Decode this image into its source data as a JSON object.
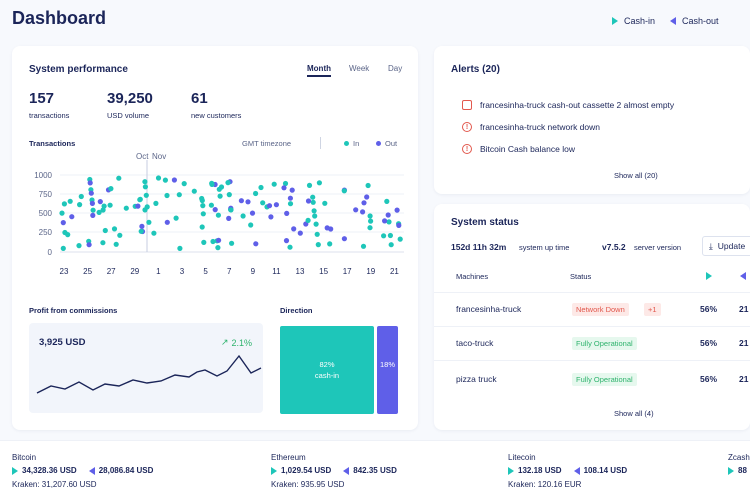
{
  "header": {
    "title": "Dashboard",
    "cash_in": "Cash-in",
    "cash_out": "Cash-out"
  },
  "performance": {
    "title": "System performance",
    "tabs": [
      "Month",
      "Week",
      "Day"
    ],
    "active_tab": "Month",
    "kpis": [
      {
        "value": "157",
        "label": "transactions"
      },
      {
        "value": "39,250",
        "label": "USD volume"
      },
      {
        "value": "61",
        "label": "new customers"
      }
    ],
    "transactions_label": "Transactions",
    "timezone": "GMT timezone",
    "legend_in": "In",
    "legend_out": "Out",
    "month_labels": [
      "Oct",
      "Nov"
    ],
    "y_ticks": [
      "1000",
      "750",
      "500",
      "250",
      "0"
    ],
    "x_ticks": [
      "23",
      "25",
      "27",
      "29",
      "1",
      "3",
      "5",
      "7",
      "9",
      "11",
      "13",
      "15",
      "17",
      "19",
      "21"
    ],
    "profit": {
      "title": "Profit from commissions",
      "value": "3,925 USD",
      "change": "2.1%"
    },
    "direction": {
      "title": "Direction",
      "in_pct": "82%",
      "in_label": "cash-in",
      "out_pct": "18%",
      "in_value": 82,
      "out_value": 18
    }
  },
  "alerts": {
    "title": "Alerts (20)",
    "items": [
      "francesinha-truck cash-out cassette 2 almost empty",
      "francesinha-truck network down",
      "Bitcoin Cash balance low"
    ],
    "show_all": "Show all (20)"
  },
  "status": {
    "title": "System status",
    "uptime": "152d 11h 32m",
    "uptime_label": "system up time",
    "version": "v7.5.2",
    "version_label": "server version",
    "update_label": "Update",
    "columns": {
      "machines": "Machines",
      "status": "Status"
    },
    "machines": [
      {
        "name": "francesinha-truck",
        "status": "Network Down",
        "extra": "+1",
        "in": "56%",
        "out": "21"
      },
      {
        "name": "taco-truck",
        "status": "Fully Operational",
        "extra": "",
        "in": "56%",
        "out": "21"
      },
      {
        "name": "pizza truck",
        "status": "Fully Operational",
        "extra": "",
        "in": "56%",
        "out": "21"
      }
    ],
    "show_all": "Show all (4)"
  },
  "tickers": [
    {
      "name": "Bitcoin",
      "buy": "34,328.36 USD",
      "sell": "28,086.84 USD",
      "source": "Kraken: 31,207.60 USD"
    },
    {
      "name": "Ethereum",
      "buy": "1,029.54 USD",
      "sell": "842.35 USD",
      "source": "Kraken: 935.95 USD"
    },
    {
      "name": "Litecoin",
      "buy": "132.18 USD",
      "sell": "108.14 USD",
      "source": "Kraken: 120.16 EUR"
    },
    {
      "name": "Zcash",
      "buy": "88",
      "sell": "",
      "source": ""
    }
  ],
  "colors": {
    "cash_in": "#1ec6b9",
    "cash_out": "#5f5fe8",
    "navy": "#1b2559",
    "alert": "#e2584d",
    "ok": "#2fb36d"
  }
}
